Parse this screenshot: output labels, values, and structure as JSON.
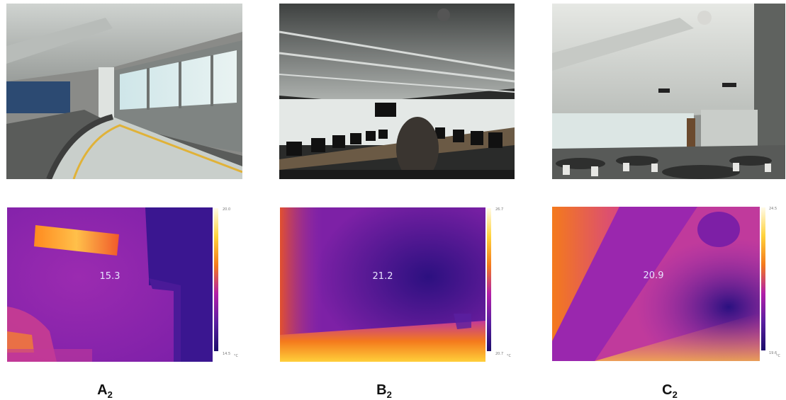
{
  "panels": [
    {
      "id": "A",
      "caption_letter": "A",
      "caption_sub": "2",
      "thermal": {
        "center_temp": "15.3",
        "scale_max": "20.0",
        "scale_min": "14.5",
        "unit": "°C"
      }
    },
    {
      "id": "B",
      "caption_letter": "B",
      "caption_sub": "2",
      "thermal": {
        "center_temp": "21.2",
        "scale_max": "26.7",
        "scale_min": "20.7",
        "unit": "°C"
      }
    },
    {
      "id": "C",
      "caption_letter": "C",
      "caption_sub": "2",
      "thermal": {
        "center_temp": "20.9",
        "scale_max": "24.5",
        "scale_min": "19.6",
        "unit": "°C"
      }
    }
  ],
  "colors": {
    "thermal_hot": "#ffd23a",
    "thermal_warm": "#f47a1c",
    "thermal_mid": "#b21fa8",
    "thermal_cool": "#5a1fa0",
    "thermal_cold": "#1b0d6b"
  }
}
